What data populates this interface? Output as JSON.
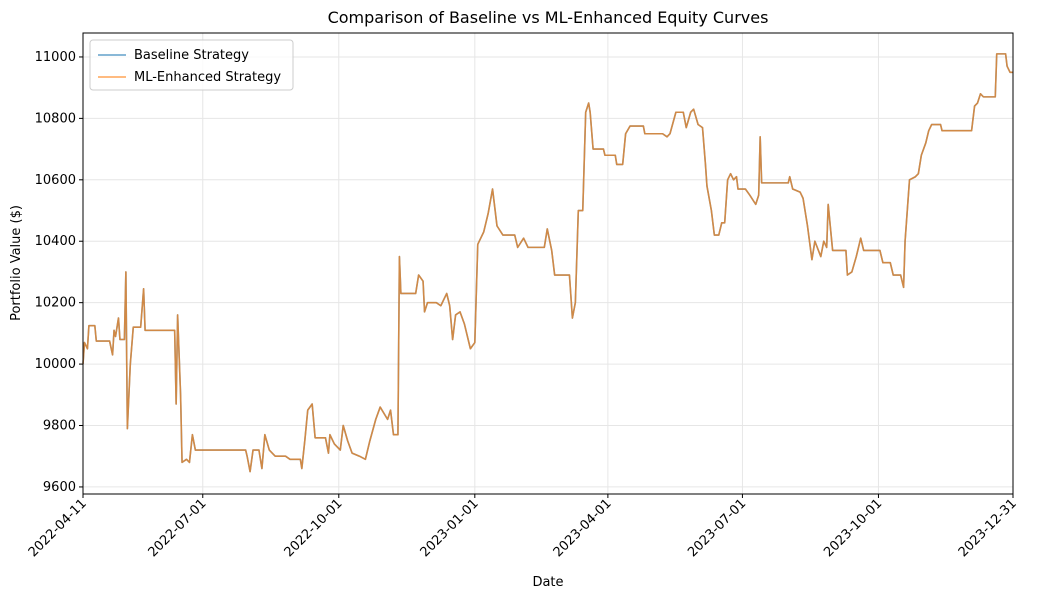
{
  "chart_data": {
    "type": "line",
    "title": "Comparison of Baseline vs ML-Enhanced Equity Curves",
    "xlabel": "Date",
    "ylabel": "Portfolio Value ($)",
    "x": [
      "2022-04-11",
      "2022-04-12",
      "2022-04-14",
      "2022-04-15",
      "2022-04-19",
      "2022-04-20",
      "2022-04-29",
      "2022-05-01",
      "2022-05-02",
      "2022-05-03",
      "2022-05-05",
      "2022-05-06",
      "2022-05-09",
      "2022-05-10",
      "2022-05-11",
      "2022-05-13",
      "2022-05-15",
      "2022-05-20",
      "2022-05-22",
      "2022-05-23",
      "2022-05-26",
      "2022-06-12",
      "2022-06-13",
      "2022-06-14",
      "2022-06-16",
      "2022-06-17",
      "2022-06-20",
      "2022-06-22",
      "2022-06-24",
      "2022-06-26",
      "2022-07-30",
      "2022-07-31",
      "2022-08-02",
      "2022-08-04",
      "2022-08-08",
      "2022-08-10",
      "2022-08-12",
      "2022-08-15",
      "2022-08-19",
      "2022-08-26",
      "2022-08-29",
      "2022-09-05",
      "2022-09-06",
      "2022-09-08",
      "2022-09-10",
      "2022-09-13",
      "2022-09-15",
      "2022-09-22",
      "2022-09-24",
      "2022-09-25",
      "2022-09-28",
      "2022-10-02",
      "2022-10-04",
      "2022-10-07",
      "2022-10-10",
      "2022-10-15",
      "2022-10-19",
      "2022-10-22",
      "2022-10-26",
      "2022-10-29",
      "2022-11-03",
      "2022-11-05",
      "2022-11-07",
      "2022-11-10",
      "2022-11-11",
      "2022-11-12",
      "2022-11-22",
      "2022-11-24",
      "2022-11-27",
      "2022-11-28",
      "2022-11-30",
      "2022-12-06",
      "2022-12-09",
      "2022-12-13",
      "2022-12-15",
      "2022-12-17",
      "2022-12-19",
      "2022-12-22",
      "2022-12-25",
      "2022-12-29",
      "2023-01-01",
      "2023-01-03",
      "2023-01-05",
      "2023-01-07",
      "2023-01-10",
      "2023-01-13",
      "2023-01-16",
      "2023-01-20",
      "2023-01-28",
      "2023-01-30",
      "2023-02-03",
      "2023-02-06",
      "2023-02-17",
      "2023-02-19",
      "2023-02-22",
      "2023-02-24",
      "2023-03-06",
      "2023-03-08",
      "2023-03-10",
      "2023-03-12",
      "2023-03-15",
      "2023-03-17",
      "2023-03-19",
      "2023-03-20",
      "2023-03-22",
      "2023-03-29",
      "2023-03-30",
      "2023-04-06",
      "2023-04-07",
      "2023-04-11",
      "2023-04-13",
      "2023-04-16",
      "2023-04-25",
      "2023-04-26",
      "2023-05-08",
      "2023-05-11",
      "2023-05-13",
      "2023-05-17",
      "2023-05-22",
      "2023-05-24",
      "2023-05-27",
      "2023-05-29",
      "2023-06-01",
      "2023-06-04",
      "2023-06-06",
      "2023-06-07",
      "2023-06-10",
      "2023-06-12",
      "2023-06-15",
      "2023-06-17",
      "2023-06-19",
      "2023-06-21",
      "2023-06-23",
      "2023-06-25",
      "2023-06-27",
      "2023-06-28",
      "2023-07-03",
      "2023-07-06",
      "2023-07-10",
      "2023-07-12",
      "2023-07-13",
      "2023-07-14",
      "2023-08-01",
      "2023-08-02",
      "2023-08-04",
      "2023-08-09",
      "2023-08-11",
      "2023-08-14",
      "2023-08-17",
      "2023-08-19",
      "2023-08-23",
      "2023-08-25",
      "2023-08-27",
      "2023-08-28",
      "2023-08-31",
      "2023-09-09",
      "2023-09-10",
      "2023-09-13",
      "2023-09-16",
      "2023-09-19",
      "2023-09-21",
      "2023-10-02",
      "2023-10-04",
      "2023-10-09",
      "2023-10-11",
      "2023-10-16",
      "2023-10-18",
      "2023-10-19",
      "2023-10-22",
      "2023-10-26",
      "2023-10-28",
      "2023-10-30",
      "2023-11-02",
      "2023-11-04",
      "2023-11-06",
      "2023-11-12",
      "2023-11-13",
      "2023-12-03",
      "2023-12-05",
      "2023-12-07",
      "2023-12-09",
      "2023-12-11",
      "2023-12-19",
      "2023-12-20",
      "2023-12-26",
      "2023-12-27",
      "2023-12-29",
      "2023-12-31"
    ],
    "series": [
      {
        "name": "Baseline Strategy",
        "color": "#1f77b4",
        "values": [
          10000,
          10070,
          10050,
          10125,
          10125,
          10075,
          10075,
          10030,
          10110,
          10090,
          10150,
          10080,
          10080,
          10300,
          9790,
          10000,
          10120,
          10120,
          10245,
          10110,
          10110,
          10110,
          9870,
          10160,
          9900,
          9680,
          9690,
          9680,
          9770,
          9720,
          9720,
          9700,
          9650,
          9720,
          9720,
          9660,
          9770,
          9720,
          9700,
          9700,
          9690,
          9690,
          9660,
          9750,
          9850,
          9870,
          9760,
          9760,
          9710,
          9770,
          9740,
          9720,
          9800,
          9750,
          9710,
          9700,
          9690,
          9750,
          9820,
          9860,
          9820,
          9850,
          9770,
          9770,
          10350,
          10230,
          10230,
          10290,
          10270,
          10170,
          10200,
          10200,
          10190,
          10230,
          10190,
          10080,
          10160,
          10170,
          10130,
          10050,
          10070,
          10390,
          10410,
          10430,
          10490,
          10570,
          10450,
          10420,
          10420,
          10380,
          10410,
          10380,
          10380,
          10440,
          10370,
          10290,
          10290,
          10150,
          10200,
          10500,
          10500,
          10820,
          10850,
          10820,
          10700,
          10700,
          10680,
          10680,
          10650,
          10650,
          10750,
          10775,
          10775,
          10750,
          10750,
          10740,
          10750,
          10820,
          10820,
          10770,
          10820,
          10830,
          10780,
          10770,
          10650,
          10580,
          10500,
          10420,
          10420,
          10460,
          10460,
          10600,
          10620,
          10600,
          10610,
          10570,
          10570,
          10550,
          10520,
          10550,
          10740,
          10590,
          10590,
          10610,
          10570,
          10560,
          10540,
          10450,
          10340,
          10400,
          10350,
          10400,
          10380,
          10520,
          10370,
          10370,
          10290,
          10300,
          10350,
          10410,
          10370,
          10370,
          10330,
          10330,
          10290,
          10290,
          10250,
          10400,
          10600,
          10610,
          10620,
          10680,
          10720,
          10760,
          10780,
          10780,
          10760,
          10760,
          10840,
          10850,
          10880,
          10870,
          10870,
          11010,
          11010,
          10970,
          10950,
          10950
        ]
      },
      {
        "name": "ML-Enhanced Strategy",
        "color": "#ff7f0e",
        "values": [
          10000,
          10070,
          10050,
          10125,
          10125,
          10075,
          10075,
          10030,
          10110,
          10090,
          10150,
          10080,
          10080,
          10300,
          9790,
          10000,
          10120,
          10120,
          10245,
          10110,
          10110,
          10110,
          9870,
          10160,
          9900,
          9680,
          9690,
          9680,
          9770,
          9720,
          9720,
          9700,
          9650,
          9720,
          9720,
          9660,
          9770,
          9720,
          9700,
          9700,
          9690,
          9690,
          9660,
          9750,
          9850,
          9870,
          9760,
          9760,
          9710,
          9770,
          9740,
          9720,
          9800,
          9750,
          9710,
          9700,
          9690,
          9750,
          9820,
          9860,
          9820,
          9850,
          9770,
          9770,
          10350,
          10230,
          10230,
          10290,
          10270,
          10170,
          10200,
          10200,
          10190,
          10230,
          10190,
          10080,
          10160,
          10170,
          10130,
          10050,
          10070,
          10390,
          10410,
          10430,
          10490,
          10570,
          10450,
          10420,
          10420,
          10380,
          10410,
          10380,
          10380,
          10440,
          10370,
          10290,
          10290,
          10150,
          10200,
          10500,
          10500,
          10820,
          10850,
          10820,
          10700,
          10700,
          10680,
          10680,
          10650,
          10650,
          10750,
          10775,
          10775,
          10750,
          10750,
          10740,
          10750,
          10820,
          10820,
          10770,
          10820,
          10830,
          10780,
          10770,
          10650,
          10580,
          10500,
          10420,
          10420,
          10460,
          10460,
          10600,
          10620,
          10600,
          10610,
          10570,
          10570,
          10550,
          10520,
          10550,
          10740,
          10590,
          10590,
          10610,
          10570,
          10560,
          10540,
          10450,
          10340,
          10400,
          10350,
          10400,
          10380,
          10520,
          10370,
          10370,
          10290,
          10300,
          10350,
          10410,
          10370,
          10370,
          10330,
          10330,
          10290,
          10290,
          10250,
          10400,
          10600,
          10610,
          10620,
          10680,
          10720,
          10760,
          10780,
          10780,
          10760,
          10760,
          10840,
          10850,
          10880,
          10870,
          10870,
          11010,
          11010,
          10970,
          10950,
          10950
        ]
      }
    ],
    "xlim": [
      "2022-04-11",
      "2023-12-31"
    ],
    "xticks": [
      "2022-04-11",
      "2022-07-01",
      "2022-10-01",
      "2023-01-01",
      "2023-04-01",
      "2023-07-01",
      "2023-10-01",
      "2023-12-31"
    ],
    "ylim": [
      9577,
      11078
    ],
    "yticks": [
      9600,
      9800,
      10000,
      10200,
      10400,
      10600,
      10800,
      11000
    ],
    "grid": true,
    "legend": "upper left"
  }
}
